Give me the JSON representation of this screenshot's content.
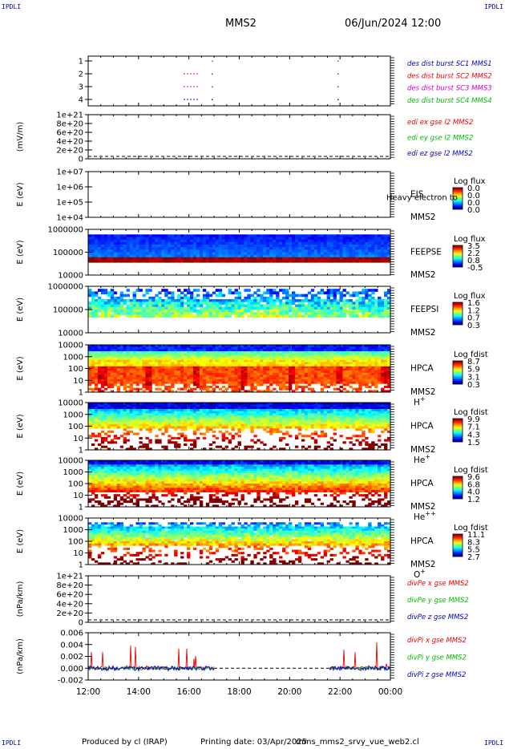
{
  "corners": {
    "tl": "IPDLI",
    "tr": "IPDLI",
    "bl": "IPDLI",
    "br": "IPDLI"
  },
  "header": {
    "spacecraft": "MMS2",
    "datetime": "06/Jun/2024 12:00"
  },
  "footer": {
    "produced": "Produced by cl (IRAP)",
    "printed": "Printing date: 03/Apr/2025",
    "file": "mms_mms2_srvy_vue_web2.cl"
  },
  "chart_data": {
    "type": "multi-panel",
    "x_ticks": [
      "12:00",
      "14:00",
      "16:00",
      "18:00",
      "20:00",
      "22:00",
      "00:00"
    ],
    "panels": [
      {
        "id": "burst",
        "type": "scatter",
        "yticks": [
          "4",
          "3",
          "2",
          "1"
        ],
        "legend": [
          {
            "label": "des dist burst SC1 MMS1",
            "color": "#0000cc"
          },
          {
            "label": "des dist burst SC2 MMS2",
            "color": "#ee0000"
          },
          {
            "label": "des dist burst SC3 MMS3",
            "color": "#cc00cc"
          },
          {
            "label": "des dist burst SC4 MMS4",
            "color": "#00bb00"
          }
        ]
      },
      {
        "id": "edi",
        "type": "line",
        "ylabel": "(mV/m)",
        "yticks": [
          "1e+21",
          "8e+20",
          "6e+20",
          "4e+20",
          "2e+20",
          "0"
        ],
        "legend": [
          {
            "label": "edi ex gse l2 MMS2",
            "color": "#ee0000"
          },
          {
            "label": "edi ey gse l2 MMS2",
            "color": "#00bb00"
          },
          {
            "label": "edi ez gse l2 MMS2",
            "color": "#0000cc"
          }
        ]
      },
      {
        "id": "eis",
        "type": "heatmap",
        "ylabel": "E (eV)",
        "yticks": [
          "1e+07",
          "1e+06",
          "1e+05",
          "1e+04"
        ],
        "inst": "EIS",
        "sub": "MMS2",
        "overlay": "Heavy electron to",
        "cbtitle": "Log flux",
        "cbticks": [
          "0.0",
          "0.0",
          "0.0",
          "0.0"
        ]
      },
      {
        "id": "feepse",
        "type": "heatmap",
        "ylabel": "E (eV)",
        "yticks": [
          "1000000",
          "100000",
          "10000"
        ],
        "inst": "FEEPSE",
        "sub": "MMS2",
        "cbtitle": "Log flux",
        "cbticks": [
          "3.5",
          "2.2",
          "0.8",
          "-0.5"
        ]
      },
      {
        "id": "feepsi",
        "type": "heatmap",
        "ylabel": "E (eV)",
        "yticks": [
          "1000000",
          "100000",
          "10000"
        ],
        "inst": "FEEPSI",
        "sub": "MMS2",
        "cbtitle": "Log flux",
        "cbticks": [
          "1.6",
          "1.2",
          "0.7",
          "0.3"
        ]
      },
      {
        "id": "hpca_h",
        "type": "heatmap",
        "ylabel": "E (eV)",
        "yticks": [
          "10000",
          "1000",
          "100",
          "10",
          "1"
        ],
        "inst": "HPCA",
        "sub": "MMS2",
        "species": "H",
        "charge": "+",
        "cbtitle": "Log fdist",
        "cbticks": [
          "8.7",
          "5.9",
          "3.1",
          "0.3"
        ]
      },
      {
        "id": "hpca_he",
        "type": "heatmap",
        "ylabel": "E (eV)",
        "yticks": [
          "10000",
          "1000",
          "100",
          "10",
          "1"
        ],
        "inst": "HPCA",
        "sub": "MMS2",
        "species": "He",
        "charge": "+",
        "cbtitle": "Log fdist",
        "cbticks": [
          "9.9",
          "7.1",
          "4.3",
          "1.5"
        ]
      },
      {
        "id": "hpca_hepp",
        "type": "heatmap",
        "ylabel": "E (eV)",
        "yticks": [
          "10000",
          "1000",
          "100",
          "10",
          "1"
        ],
        "inst": "HPCA",
        "sub": "MMS2",
        "species": "He",
        "charge": "++",
        "cbtitle": "Log fdist",
        "cbticks": [
          "9.6",
          "6.8",
          "4.0",
          "1.2"
        ]
      },
      {
        "id": "hpca_o",
        "type": "heatmap",
        "ylabel": "E (eV)",
        "yticks": [
          "10000",
          "1000",
          "100",
          "10",
          "1"
        ],
        "inst": "HPCA",
        "sub": "MMS2",
        "species": "O",
        "charge": "+",
        "cbtitle": "Log fdist",
        "cbticks": [
          "11.1",
          "8.3",
          "5.5",
          "2.7"
        ]
      },
      {
        "id": "divpe",
        "type": "line",
        "ylabel": "(nPa/km)",
        "yticks": [
          "1e+21",
          "8e+20",
          "6e+20",
          "4e+20",
          "2e+20",
          "0"
        ],
        "legend": [
          {
            "label": "divPe x gse MMS2",
            "color": "#ee0000"
          },
          {
            "label": "divPe y gse MMS2",
            "color": "#00bb00"
          },
          {
            "label": "divPe z gse MMS2",
            "color": "#0000cc"
          }
        ]
      },
      {
        "id": "divpi",
        "type": "line",
        "ylabel": "(nPa/km)",
        "yticks": [
          "0.006",
          "0.004",
          "0.002",
          "0.000",
          "-0.002"
        ],
        "legend": [
          {
            "label": "divPi x gse MMS2",
            "color": "#ee0000"
          },
          {
            "label": "divPi y gse MMS2",
            "color": "#00bb00"
          },
          {
            "label": "divPi z gse MMS2",
            "color": "#0000cc"
          }
        ]
      }
    ]
  }
}
